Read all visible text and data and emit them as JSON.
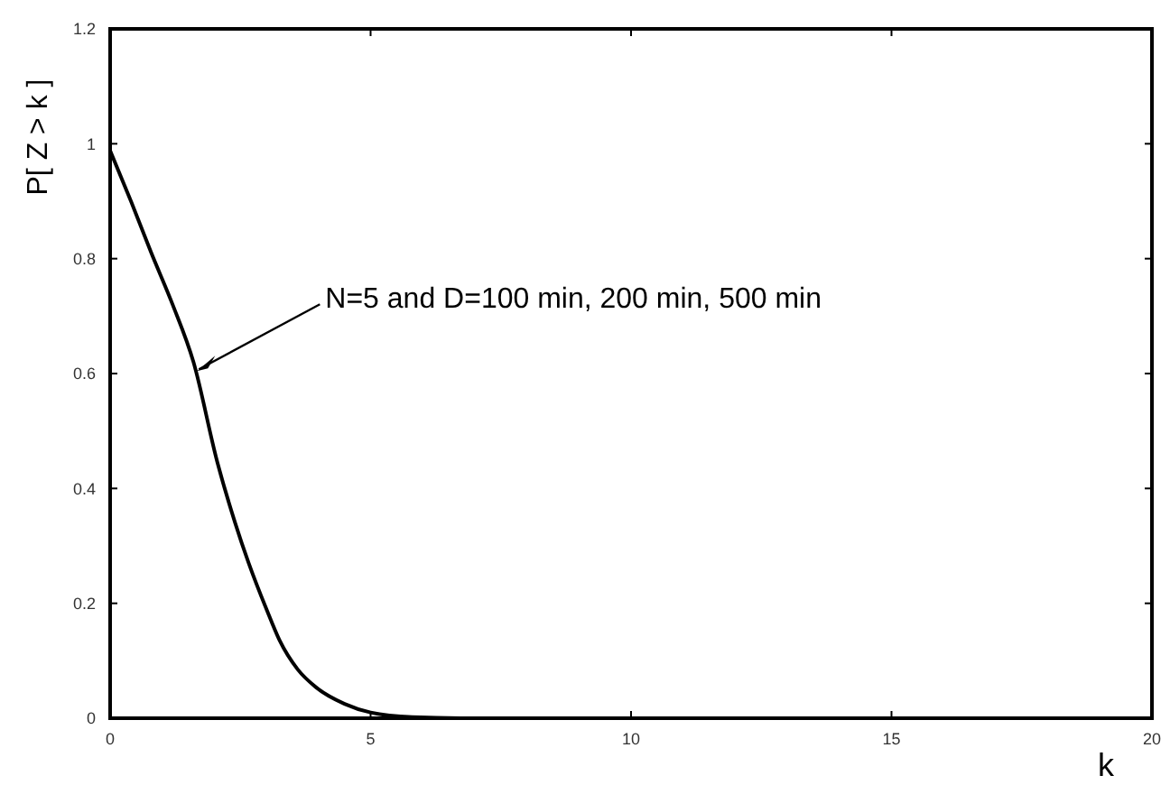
{
  "chart_data": {
    "type": "line",
    "xlabel": "k",
    "ylabel": "P[ Z > k ]",
    "x": [
      0,
      0.4,
      0.79,
      1.2,
      1.6,
      2.06,
      2.4,
      2.66,
      3.0,
      3.25,
      3.6,
      3.95,
      4.5,
      5,
      5.8,
      7,
      10,
      15,
      20
    ],
    "series": [
      {
        "color": "#000000",
        "values": [
          0.988,
          0.9,
          0.81,
          0.72,
          0.62,
          0.445,
          0.34,
          0.27,
          0.19,
          0.136,
          0.085,
          0.054,
          0.025,
          0.01,
          0.002,
          0,
          0,
          0,
          0
        ]
      }
    ],
    "xlim": [
      0,
      20
    ],
    "xticks": [
      0,
      5,
      10,
      15,
      20
    ],
    "ylim": [
      0,
      1.2
    ],
    "yticks": [
      0,
      0.2,
      0.4,
      0.6,
      0.8,
      1,
      1.2
    ],
    "grid": false,
    "legend": false,
    "marker": "none",
    "line_style": "solid",
    "annotations": [
      {
        "text": "N=5 and D=100 min, 200 min, 500 min",
        "x": 1.6,
        "y": 0.62
      }
    ]
  }
}
